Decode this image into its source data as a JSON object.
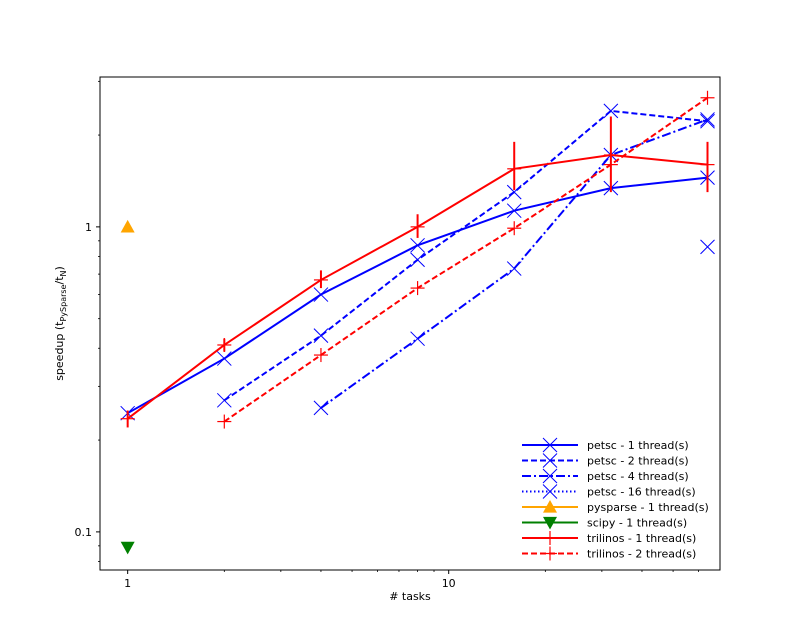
{
  "chart_data": {
    "type": "line",
    "title": "",
    "xlabel": "# tasks",
    "ylabel_main": "speedup (t",
    "ylabel_sub": "PySparse",
    "ylabel_end": "/t",
    "ylabel_sub2": "N",
    "ylabel_close": ")",
    "xscale": "log",
    "yscale": "log",
    "xlim": [
      0.82,
      70
    ],
    "ylim": [
      0.075,
      3.1
    ],
    "xticks": [
      {
        "value": 1,
        "label": "1"
      },
      {
        "value": 10,
        "label": "10"
      }
    ],
    "yticks": [
      {
        "value": 0.1,
        "label": "0.1"
      },
      {
        "value": 1,
        "label": "1"
      }
    ],
    "grid": false,
    "legend_position": "lower-right",
    "series": [
      {
        "name": "petsc - 1 thread(s)",
        "color": "#0000ff",
        "linestyle": "solid",
        "marker": "x",
        "x": [
          1,
          2,
          4,
          8,
          16,
          32,
          64
        ],
        "y": [
          0.245,
          0.37,
          0.6,
          0.87,
          1.13,
          1.34,
          1.45
        ]
      },
      {
        "name": "petsc - 2 thread(s)",
        "color": "#0000ff",
        "linestyle": "dashed",
        "marker": "x",
        "x": [
          2,
          4,
          8,
          16,
          32,
          64
        ],
        "y": [
          0.27,
          0.44,
          0.78,
          1.3,
          2.4,
          2.22
        ]
      },
      {
        "name": "petsc - 4 thread(s)",
        "color": "#0000ff",
        "linestyle": "dashdot",
        "marker": "x",
        "x": [
          4,
          8,
          16,
          32,
          64
        ],
        "y": [
          0.255,
          0.43,
          0.73,
          1.72,
          2.25
        ]
      },
      {
        "name": "petsc - 16 thread(s)",
        "color": "#0000ff",
        "linestyle": "dotted",
        "marker": "x",
        "x": [
          64
        ],
        "y": [
          0.86
        ]
      },
      {
        "name": "pysparse - 1 thread(s)",
        "color": "#ffa500",
        "linestyle": "solid",
        "marker": "triangle-up",
        "x": [
          1
        ],
        "y": [
          1.0
        ]
      },
      {
        "name": "scipy - 1 thread(s)",
        "color": "#008000",
        "linestyle": "solid",
        "marker": "triangle-down",
        "x": [
          1
        ],
        "y": [
          0.089
        ]
      },
      {
        "name": "trilinos - 1 thread(s)",
        "color": "#ff0000",
        "linestyle": "solid",
        "marker": "plus",
        "x": [
          1,
          2,
          4,
          8,
          16,
          32,
          64
        ],
        "y": [
          0.235,
          0.41,
          0.67,
          1.0,
          1.55,
          1.72,
          1.6
        ],
        "err_low": [
          0.22,
          0.39,
          0.63,
          0.92,
          1.32,
          1.3,
          1.3
        ],
        "err_high": [
          0.25,
          0.43,
          0.72,
          1.1,
          1.9,
          2.3,
          1.9
        ]
      },
      {
        "name": "trilinos - 2 thread(s)",
        "color": "#ff0000",
        "linestyle": "dashed",
        "marker": "plus",
        "x": [
          2,
          4,
          8,
          16,
          32,
          64
        ],
        "y": [
          0.23,
          0.38,
          0.63,
          0.99,
          1.6,
          2.65
        ]
      }
    ]
  }
}
